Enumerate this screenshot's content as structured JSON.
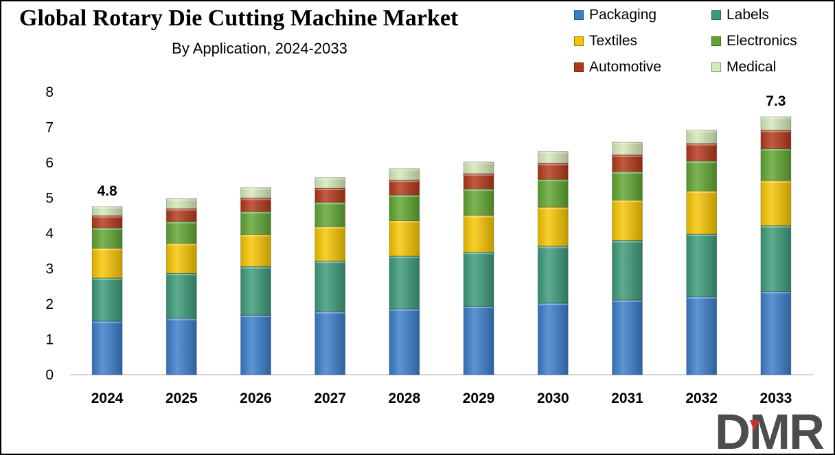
{
  "title": "Global Rotary Die Cutting Machine Market",
  "subtitle": "By Application, 2024-2033",
  "logo_text": "DMR",
  "colors": {
    "Packaging": "#3A7DC9",
    "Labels": "#3B9A78",
    "Textiles": "#F6C400",
    "Electronics": "#5FA531",
    "Automotive": "#B3371A",
    "Medical": "#D4E9B8",
    "logo": "#4D4D4D",
    "logo_accent": "#C8342A"
  },
  "chart_data": {
    "type": "bar",
    "stacked": true,
    "categories": [
      "2024",
      "2025",
      "2026",
      "2027",
      "2028",
      "2029",
      "2030",
      "2031",
      "2032",
      "2033"
    ],
    "series": [
      {
        "name": "Packaging",
        "values": [
          1.52,
          1.6,
          1.69,
          1.79,
          1.87,
          1.94,
          2.03,
          2.12,
          2.21,
          2.36
        ]
      },
      {
        "name": "Labels",
        "values": [
          1.22,
          1.27,
          1.37,
          1.43,
          1.49,
          1.53,
          1.61,
          1.68,
          1.77,
          1.86
        ]
      },
      {
        "name": "Textiles",
        "values": [
          0.84,
          0.85,
          0.91,
          0.97,
          1.0,
          1.04,
          1.1,
          1.14,
          1.22,
          1.27
        ]
      },
      {
        "name": "Electronics",
        "values": [
          0.58,
          0.62,
          0.65,
          0.69,
          0.73,
          0.75,
          0.79,
          0.81,
          0.85,
          0.91
        ]
      },
      {
        "name": "Automotive",
        "values": [
          0.34,
          0.36,
          0.38,
          0.4,
          0.42,
          0.43,
          0.45,
          0.47,
          0.49,
          0.52
        ]
      },
      {
        "name": "Medical",
        "values": [
          0.26,
          0.28,
          0.29,
          0.3,
          0.32,
          0.33,
          0.34,
          0.36,
          0.38,
          0.38
        ]
      }
    ],
    "totals": [
      4.76,
      4.98,
      5.29,
      5.58,
      5.83,
      6.02,
      6.32,
      6.58,
      6.92,
      7.3
    ],
    "data_labels": [
      {
        "category": "2024",
        "text": "4.8"
      },
      {
        "category": "2033",
        "text": "7.3"
      }
    ],
    "y_ticks": [
      "0",
      "1",
      "2",
      "3",
      "4",
      "5",
      "6",
      "7",
      "8"
    ],
    "ylim": [
      0,
      8
    ],
    "xlabel": "",
    "ylabel": "",
    "grid": false,
    "legend_position": "top-right"
  }
}
